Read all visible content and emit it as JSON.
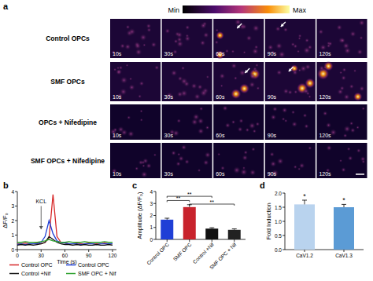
{
  "panel_labels": [
    "a",
    "b",
    "c",
    "d"
  ],
  "panel_a": {
    "colorbar_labels": [
      "Min",
      "Max"
    ],
    "rows": [
      "Control OPCs",
      "SMF OPCs",
      "OPCs + Nifedipine",
      "SMF OPCs + Nifedipine"
    ],
    "frames": [
      "10s",
      "30s",
      "60s",
      "90s",
      "120s"
    ]
  },
  "chart_data": [
    {
      "type": "line",
      "y_label": "ΔF/F₀",
      "x_label": "Time (s)",
      "x": [
        0,
        5,
        10,
        15,
        20,
        25,
        30,
        35,
        40,
        45,
        50,
        55,
        60,
        65,
        70,
        75,
        80,
        85,
        90,
        95,
        100,
        105,
        110,
        115,
        120
      ],
      "xlim": [
        0,
        125
      ],
      "xticks": [
        0,
        30,
        60,
        90,
        120
      ],
      "ylim": [
        0,
        4
      ],
      "yticks": [
        0,
        1,
        2,
        3,
        4
      ],
      "legend": "bottom",
      "grid": false,
      "annotations": [
        {
          "text": "KCL",
          "x": 30
        }
      ],
      "series": [
        {
          "name": "Control OPC",
          "color": "#d62728",
          "values": [
            0.4,
            0.4,
            0.45,
            0.4,
            0.4,
            0.45,
            0.4,
            0.5,
            0.8,
            3.8,
            0.9,
            0.5,
            0.45,
            0.4,
            0.4,
            0.45,
            0.4,
            0.4,
            0.45,
            0.4,
            0.4,
            0.4,
            0.45,
            0.4,
            0.4
          ]
        },
        {
          "name": "Control OPC",
          "color": "#1f3fd6",
          "values": [
            0.35,
            0.4,
            0.35,
            0.4,
            0.4,
            0.4,
            0.5,
            0.9,
            2.0,
            1.1,
            0.6,
            0.5,
            0.45,
            0.4,
            0.4,
            0.4,
            0.35,
            0.4,
            0.4,
            0.4,
            0.35,
            0.4,
            0.4,
            0.4,
            0.4
          ]
        },
        {
          "name": "Control +Nif",
          "color": "#111111",
          "values": [
            0.3,
            0.35,
            0.3,
            0.35,
            0.3,
            0.35,
            0.4,
            0.5,
            0.9,
            0.7,
            0.5,
            0.4,
            0.35,
            0.35,
            0.3,
            0.35,
            0.3,
            0.35,
            0.3,
            0.3,
            0.35,
            0.3,
            0.3,
            0.35,
            0.3
          ]
        },
        {
          "name": "SMF OPC + Nif",
          "color": "#2ca02c",
          "values": [
            0.5,
            0.5,
            0.55,
            0.5,
            0.5,
            0.5,
            0.55,
            0.6,
            0.7,
            0.6,
            0.55,
            0.5,
            0.5,
            0.55,
            0.5,
            0.5,
            0.5,
            0.55,
            0.5,
            0.5,
            0.5,
            0.5,
            0.55,
            0.5,
            0.5
          ]
        }
      ]
    },
    {
      "type": "bar",
      "y_label": "Amplitude (ΔF/F₀)",
      "categories": [
        "Control OPC",
        "SMF OPC",
        "Control +Nif",
        "SMF OPC + Nif"
      ],
      "values": [
        1.65,
        2.7,
        0.9,
        0.8
      ],
      "errors": [
        0.12,
        0.2,
        0.08,
        0.08
      ],
      "colors": [
        "#1f3fd6",
        "#c8232c",
        "#111111",
        "#222222"
      ],
      "ylim": [
        0,
        4
      ],
      "yticks": [
        0,
        1,
        2,
        3,
        4
      ],
      "grid": false,
      "annotations": [
        {
          "text": "**",
          "x1": 0,
          "x2": 2,
          "y": 3.6
        },
        {
          "text": "**",
          "x1": 0,
          "x2": 1,
          "y": 3.25
        },
        {
          "text": "**",
          "x1": 1,
          "x2": 3,
          "y": 2.95
        }
      ]
    },
    {
      "type": "bar",
      "y_label": "Fold Induction",
      "categories": [
        "CaV1.2",
        "CaV1.3"
      ],
      "values": [
        1.6,
        1.5
      ],
      "errors": [
        0.15,
        0.1
      ],
      "colors": [
        "#b9d3ee",
        "#5b9bd5"
      ],
      "ylim": [
        0,
        2
      ],
      "yticks": [
        {
          "value": 0,
          "label": "0.0"
        },
        {
          "value": 0.5,
          "label": "0.5"
        },
        {
          "value": 1,
          "label": "1.0"
        },
        {
          "value": 1.5,
          "label": "1.5"
        },
        {
          "value": 2,
          "label": "2.0"
        }
      ],
      "grid": false,
      "annotations": [
        {
          "text": "*",
          "x": 0
        },
        {
          "text": "*",
          "x": 1
        }
      ]
    }
  ]
}
